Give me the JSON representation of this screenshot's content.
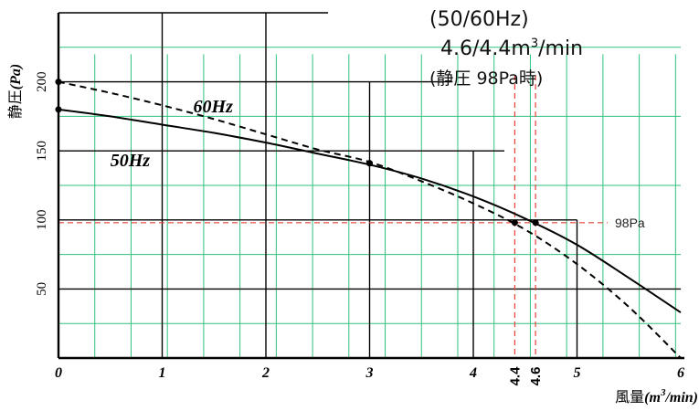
{
  "spec": {
    "freq": "(50/60Hz)",
    "flow_main": "4.6/4.4m",
    "flow_exp": "3",
    "flow_unit": "/min",
    "condition": "(静圧 98Pa時)"
  },
  "chart_data": {
    "type": "line",
    "ylabel_main": "静圧",
    "ylabel_unit": "(Pa)",
    "xlabel_main": "風量",
    "xlabel_unit_pre": "(m",
    "xlabel_unit_exp": "3",
    "xlabel_unit_post": "/min)",
    "xlim": [
      0,
      6
    ],
    "ylim": [
      0,
      250
    ],
    "x_ticks": [
      "0",
      "1",
      "2",
      "3",
      "4",
      "5",
      "6"
    ],
    "y_ticks": [
      "50",
      "100",
      "150",
      "200"
    ],
    "y_tick_values": [
      50,
      100,
      150,
      200
    ],
    "ref_line_label": "98Pa",
    "ref_line_value": 98,
    "op_points": [
      {
        "label": "4.4",
        "x": 4.4,
        "y": 98
      },
      {
        "label": "4.6",
        "x": 4.6,
        "y": 98
      }
    ],
    "series": [
      {
        "name": "50Hz",
        "style": "solid",
        "x": [
          0,
          0.5,
          1,
          1.5,
          2,
          2.5,
          3,
          3.5,
          4,
          4.5,
          5,
          5.5,
          6
        ],
        "y": [
          180,
          175,
          169,
          163,
          156,
          148,
          140,
          130,
          117,
          101,
          82,
          58,
          33
        ],
        "marked_points": [
          [
            0,
            180
          ],
          [
            3,
            141
          ]
        ]
      },
      {
        "name": "60Hz",
        "style": "dashed",
        "x": [
          0,
          0.5,
          1,
          1.5,
          2,
          2.5,
          3,
          3.5,
          4,
          4.5,
          5,
          5.5,
          6
        ],
        "y": [
          200,
          192,
          183,
          173,
          162,
          151,
          142,
          128,
          112,
          93,
          68,
          37,
          0
        ],
        "marked_points": [
          [
            0,
            200
          ],
          [
            3,
            141
          ]
        ]
      }
    ],
    "colors": {
      "axis": "#000000",
      "curve": "#000000",
      "grid_major": "#000000",
      "grid_minor": "#2ec27e",
      "ref_line": "#e8403a"
    }
  }
}
